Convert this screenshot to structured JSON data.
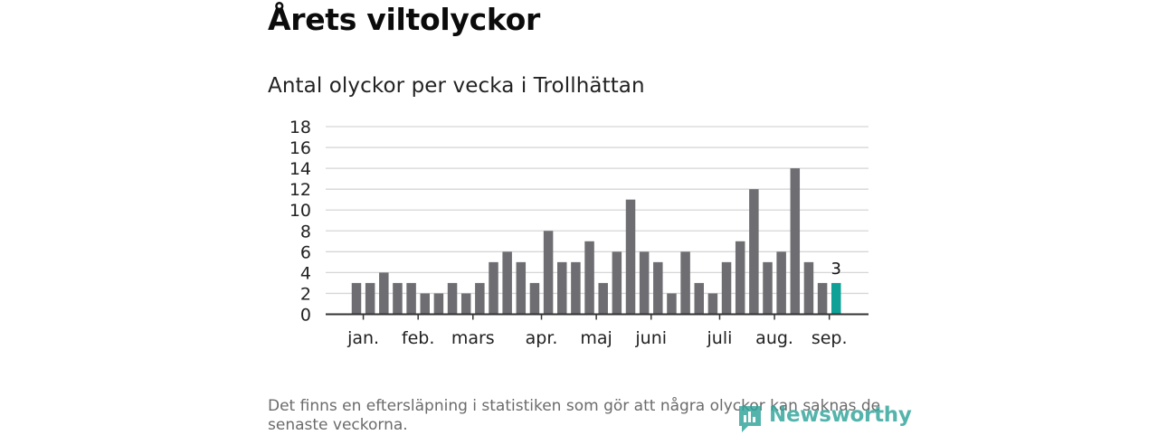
{
  "title": "Årets viltolyckor",
  "subtitle": "Antal olyckor per vecka i Trollhättan",
  "footnote": "Det finns en eftersläpning i statistiken som gör att några olyckor kan saknas de senaste veckorna.",
  "logo": {
    "text": "Newsworthy",
    "icon": "newsworthy-logo-icon",
    "color": "#2fa49a"
  },
  "chart_data": {
    "type": "bar",
    "ylim": [
      0,
      18
    ],
    "yticks": [
      0,
      2,
      4,
      6,
      8,
      10,
      12,
      14,
      16,
      18
    ],
    "grid": true,
    "values": [
      3,
      3,
      4,
      3,
      3,
      2,
      2,
      3,
      2,
      3,
      5,
      6,
      5,
      3,
      8,
      5,
      5,
      7,
      3,
      6,
      11,
      6,
      5,
      2,
      6,
      3,
      2,
      5,
      7,
      12,
      5,
      6,
      14,
      5,
      3,
      3
    ],
    "month_labels": [
      {
        "label": "jan.",
        "at_bar": 0.5
      },
      {
        "label": "feb.",
        "at_bar": 4.5
      },
      {
        "label": "mars",
        "at_bar": 8.5
      },
      {
        "label": "apr.",
        "at_bar": 13.5
      },
      {
        "label": "maj",
        "at_bar": 17.5
      },
      {
        "label": "juni",
        "at_bar": 21.5
      },
      {
        "label": "juli",
        "at_bar": 26.5
      },
      {
        "label": "aug.",
        "at_bar": 30.5
      },
      {
        "label": "sep.",
        "at_bar": 34.5
      }
    ],
    "highlight_last": {
      "label": "3",
      "color": "#0fa197"
    },
    "bar_color": "#6e6d72",
    "grid_color": "#d6d6d6",
    "axis_color": "#333333"
  }
}
